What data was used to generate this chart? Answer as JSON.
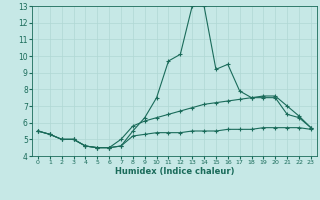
{
  "xlabel": "Humidex (Indice chaleur)",
  "xlim": [
    -0.5,
    23.5
  ],
  "ylim": [
    4,
    13
  ],
  "yticks": [
    4,
    5,
    6,
    7,
    8,
    9,
    10,
    11,
    12,
    13
  ],
  "xticks": [
    0,
    1,
    2,
    3,
    4,
    5,
    6,
    7,
    8,
    9,
    10,
    11,
    12,
    13,
    14,
    15,
    16,
    17,
    18,
    19,
    20,
    21,
    22,
    23
  ],
  "background_color": "#c6e8e6",
  "line_color": "#1a6b5a",
  "grid_color": "#b0d8d4",
  "lines": [
    {
      "x": [
        0,
        1,
        2,
        3,
        4,
        5,
        6,
        7,
        8,
        9,
        10,
        11,
        12,
        13,
        14,
        15,
        16,
        17,
        18,
        19,
        20,
        21,
        22,
        23
      ],
      "y": [
        5.5,
        5.3,
        5.0,
        5.0,
        4.6,
        4.5,
        4.5,
        4.6,
        5.5,
        6.3,
        7.5,
        9.7,
        10.1,
        13.0,
        13.0,
        9.2,
        9.5,
        7.9,
        7.5,
        7.5,
        7.5,
        6.5,
        6.3,
        5.7
      ]
    },
    {
      "x": [
        0,
        1,
        2,
        3,
        4,
        5,
        6,
        7,
        8,
        9,
        10,
        11,
        12,
        13,
        14,
        15,
        16,
        17,
        18,
        19,
        20,
        21,
        22,
        23
      ],
      "y": [
        5.5,
        5.3,
        5.0,
        5.0,
        4.6,
        4.5,
        4.5,
        5.0,
        5.8,
        6.1,
        6.3,
        6.5,
        6.7,
        6.9,
        7.1,
        7.2,
        7.3,
        7.4,
        7.5,
        7.6,
        7.6,
        7.0,
        6.4,
        5.7
      ]
    },
    {
      "x": [
        0,
        1,
        2,
        3,
        4,
        5,
        6,
        7,
        8,
        9,
        10,
        11,
        12,
        13,
        14,
        15,
        16,
        17,
        18,
        19,
        20,
        21,
        22,
        23
      ],
      "y": [
        5.5,
        5.3,
        5.0,
        5.0,
        4.6,
        4.5,
        4.5,
        4.6,
        5.2,
        5.3,
        5.4,
        5.4,
        5.4,
        5.5,
        5.5,
        5.5,
        5.6,
        5.6,
        5.6,
        5.7,
        5.7,
        5.7,
        5.7,
        5.6
      ]
    }
  ]
}
